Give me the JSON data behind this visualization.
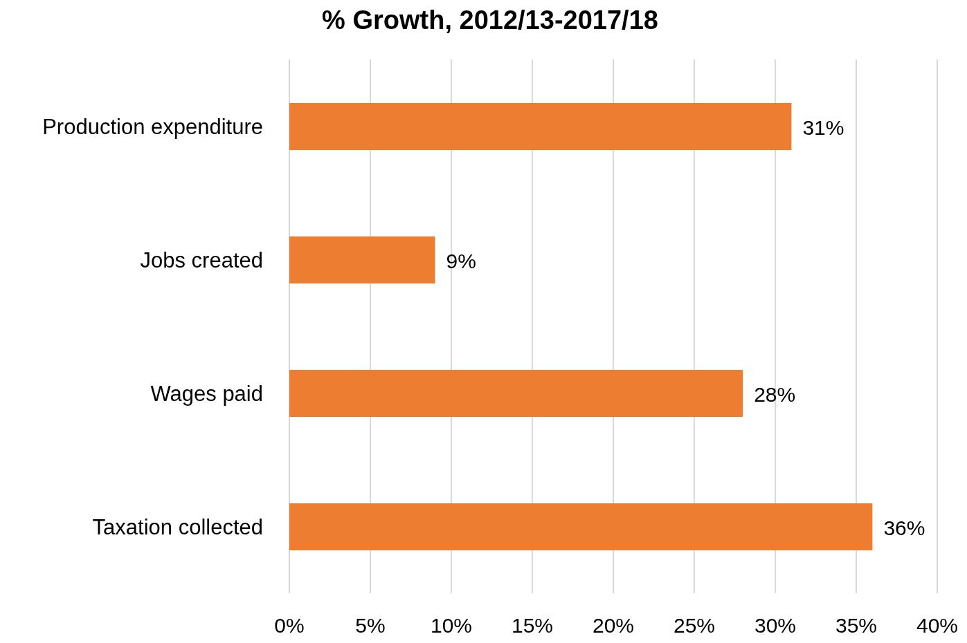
{
  "chart_data": {
    "type": "bar",
    "orientation": "horizontal",
    "title": "% Growth, 2012/13-2017/18",
    "categories": [
      "Production expenditure",
      "Jobs created",
      "Wages paid",
      "Taxation collected"
    ],
    "values": [
      31,
      9,
      28,
      36
    ],
    "value_labels": [
      "31%",
      "9%",
      "28%",
      "36%"
    ],
    "color": "#ed7d31",
    "xlim": [
      0,
      40
    ],
    "xticks": [
      {
        "value": 0,
        "label": "0%"
      },
      {
        "value": 5,
        "label": "5%"
      },
      {
        "value": 10,
        "label": "10%"
      },
      {
        "value": 15,
        "label": "15%"
      },
      {
        "value": 20,
        "label": "20%"
      },
      {
        "value": 25,
        "label": "25%"
      },
      {
        "value": 30,
        "label": "30%"
      },
      {
        "value": 35,
        "label": "35%"
      },
      {
        "value": 40,
        "label": "40%"
      }
    ],
    "grid": "x",
    "legend": false
  }
}
